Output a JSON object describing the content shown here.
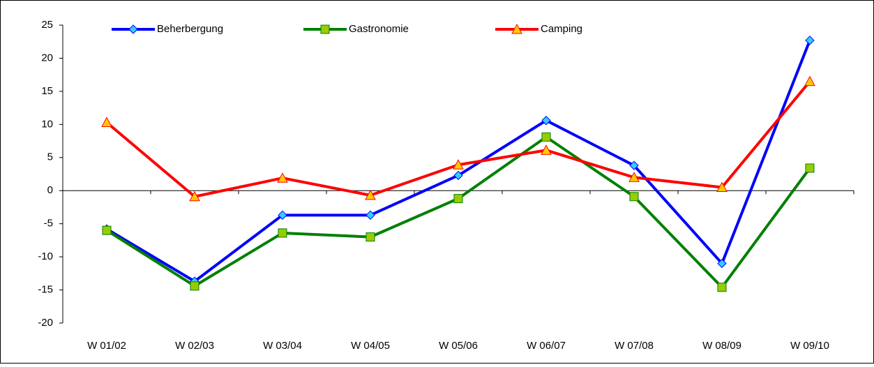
{
  "chart_data": {
    "type": "line",
    "categories": [
      "W 01/02",
      "W 02/03",
      "W 03/04",
      "W 04/05",
      "W 05/06",
      "W 06/07",
      "W 07/08",
      "W 08/09",
      "W 09/10"
    ],
    "series": [
      {
        "name": "Beherbergung",
        "color": "#0000ff",
        "marker": "diamond",
        "marker_color": "#33ccff",
        "values": [
          -5.8,
          -13.7,
          -3.7,
          -3.7,
          2.3,
          10.6,
          3.8,
          -11.0,
          22.7
        ]
      },
      {
        "name": "Gastronomie",
        "color": "#008000",
        "marker": "square",
        "marker_color": "#99cc00",
        "values": [
          -6.0,
          -14.4,
          -6.4,
          -7.0,
          -1.2,
          8.1,
          -0.9,
          -14.6,
          3.4
        ]
      },
      {
        "name": "Camping",
        "color": "#ff0000",
        "marker": "triangle",
        "marker_color": "#ffcc00",
        "values": [
          10.3,
          -0.9,
          1.9,
          -0.7,
          3.9,
          6.1,
          2.0,
          0.5,
          16.5
        ]
      }
    ],
    "ylim": [
      -20,
      25
    ],
    "yticks": [
      -20,
      -15,
      -10,
      -5,
      0,
      5,
      10,
      15,
      20,
      25
    ],
    "legend": "top"
  }
}
